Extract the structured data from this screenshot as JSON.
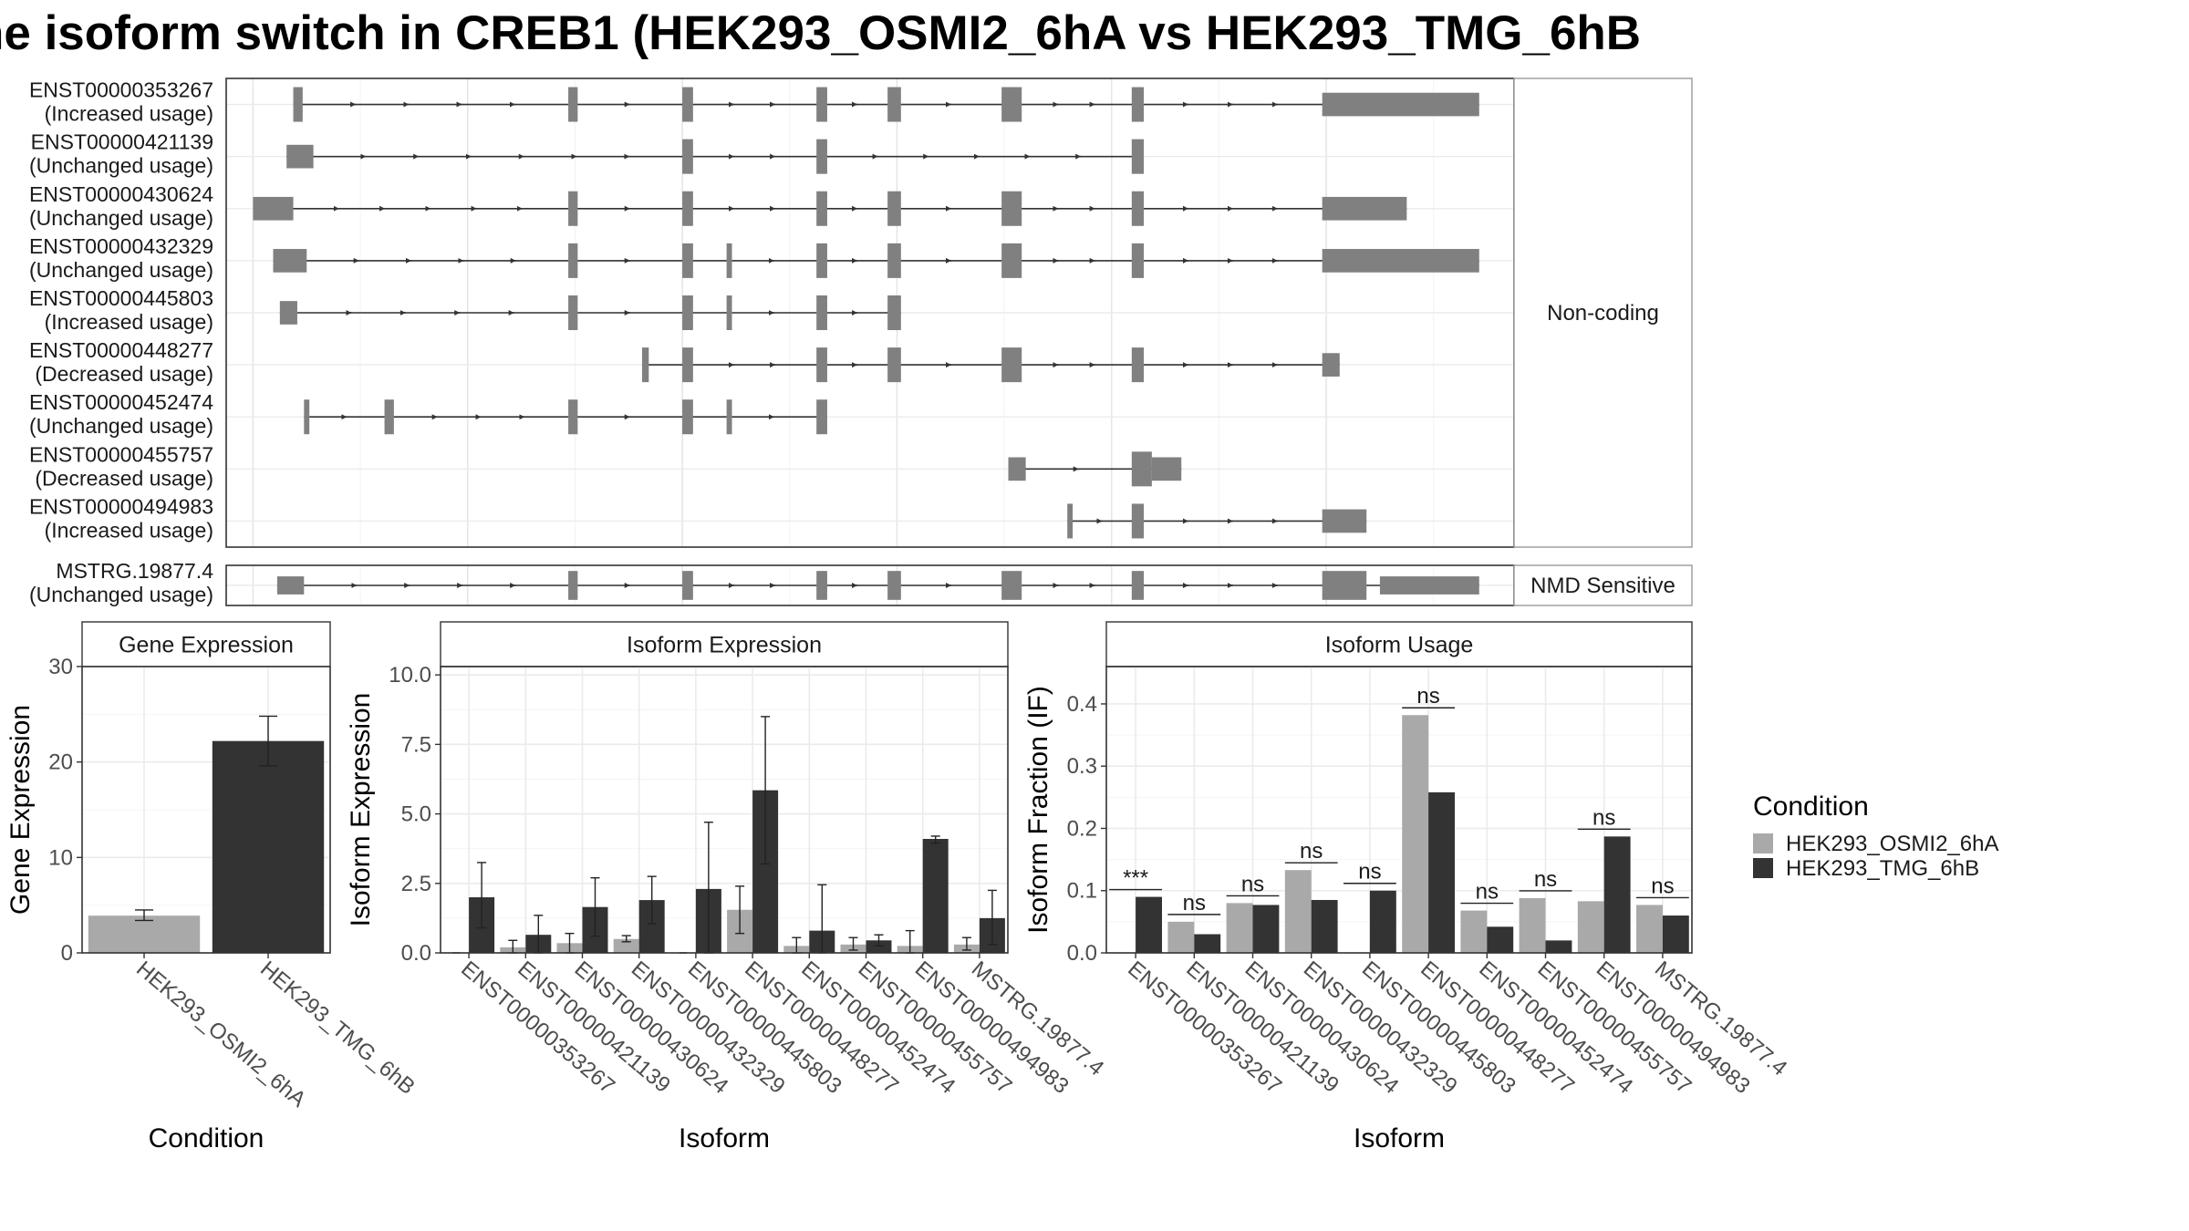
{
  "title": "he isoform switch in CREB1 (HEK293_OSMI2_6hA vs HEK293_TMG_6hB",
  "colors": {
    "cond_a": "#a9a9a9",
    "cond_b": "#333333",
    "exon": "#808080"
  },
  "chart_data": [
    {
      "type": "gene_structure",
      "panels": [
        {
          "strip": "Non-coding",
          "transcripts": [
            {
              "id": "ENST00000353267",
              "status": "(Increased usage)",
              "exons": [
                [
                  0.5,
                  0.57
                ],
                [
                  2.55,
                  2.62
                ],
                [
                  3.4,
                  3.48
                ],
                [
                  4.4,
                  4.48
                ],
                [
                  4.93,
                  5.03
                ],
                [
                  5.78,
                  5.93
                ],
                [
                  6.75,
                  6.84
                ],
                [
                  8.17,
                  9.34
                ]
              ]
            },
            {
              "id": "ENST00000421139",
              "status": "(Unchanged usage)",
              "exons": [
                [
                  0.45,
                  0.65
                ],
                [
                  3.4,
                  3.48
                ],
                [
                  4.4,
                  4.48
                ],
                [
                  6.75,
                  6.84
                ]
              ]
            },
            {
              "id": "ENST00000430624",
              "status": "(Unchanged usage)",
              "exons": [
                [
                  0.2,
                  0.5
                ],
                [
                  2.55,
                  2.62
                ],
                [
                  3.4,
                  3.48
                ],
                [
                  4.4,
                  4.48
                ],
                [
                  4.93,
                  5.03
                ],
                [
                  5.78,
                  5.93
                ],
                [
                  6.75,
                  6.84
                ],
                [
                  8.17,
                  8.8
                ]
              ]
            },
            {
              "id": "ENST00000432329",
              "status": "(Unchanged usage)",
              "exons": [
                [
                  0.35,
                  0.6
                ],
                [
                  2.55,
                  2.62
                ],
                [
                  3.4,
                  3.48
                ],
                [
                  3.73,
                  3.77
                ],
                [
                  4.4,
                  4.48
                ],
                [
                  4.93,
                  5.03
                ],
                [
                  5.78,
                  5.93
                ],
                [
                  6.75,
                  6.84
                ],
                [
                  8.17,
                  9.34
                ]
              ]
            },
            {
              "id": "ENST00000445803",
              "status": "(Increased usage)",
              "exons": [
                [
                  0.4,
                  0.53
                ],
                [
                  2.55,
                  2.62
                ],
                [
                  3.4,
                  3.48
                ],
                [
                  3.73,
                  3.77
                ],
                [
                  4.4,
                  4.48
                ],
                [
                  4.93,
                  5.03
                ]
              ]
            },
            {
              "id": "ENST00000448277",
              "status": "(Decreased usage)",
              "exons": [
                [
                  3.1,
                  3.15
                ],
                [
                  3.4,
                  3.48
                ],
                [
                  4.4,
                  4.48
                ],
                [
                  4.93,
                  5.03
                ],
                [
                  5.78,
                  5.93
                ],
                [
                  6.75,
                  6.84
                ],
                [
                  8.17,
                  8.3
                ]
              ]
            },
            {
              "id": "ENST00000452474",
              "status": "(Unchanged usage)",
              "exons": [
                [
                  0.58,
                  0.62
                ],
                [
                  1.18,
                  1.25
                ],
                [
                  2.55,
                  2.62
                ],
                [
                  3.4,
                  3.48
                ],
                [
                  3.73,
                  3.77
                ],
                [
                  4.4,
                  4.48
                ]
              ]
            },
            {
              "id": "ENST00000455757",
              "status": "(Decreased usage)",
              "exons": [
                [
                  5.83,
                  5.96
                ],
                [
                  6.75,
                  6.9
                ],
                [
                  6.9,
                  7.12
                ]
              ]
            },
            {
              "id": "ENST00000494983",
              "status": "(Increased usage)",
              "exons": [
                [
                  6.27,
                  6.31
                ],
                [
                  6.75,
                  6.84
                ],
                [
                  8.17,
                  8.5
                ]
              ]
            }
          ]
        },
        {
          "strip": "NMD Sensitive",
          "transcripts": [
            {
              "id": "MSTRG.19877.4",
              "status": "(Unchanged usage)",
              "exons": [
                [
                  0.38,
                  0.58
                ],
                [
                  2.55,
                  2.62
                ],
                [
                  3.4,
                  3.48
                ],
                [
                  4.4,
                  4.48
                ],
                [
                  4.93,
                  5.03
                ],
                [
                  5.78,
                  5.93
                ],
                [
                  6.75,
                  6.84
                ],
                [
                  8.17,
                  8.5
                ],
                [
                  8.6,
                  9.34
                ]
              ]
            }
          ]
        }
      ]
    },
    {
      "type": "bar",
      "strip": "Gene Expression",
      "xlabel": "Condition",
      "ylabel": "Gene Expression",
      "ylim": [
        0,
        30
      ],
      "yticks": [
        "0",
        "10",
        "20",
        "30"
      ],
      "categories": [
        "HEK293_OSMI2_6hA",
        "HEK293_TMG_6hB"
      ],
      "values": [
        3.9,
        22.2
      ],
      "error": [
        [
          3.4,
          4.5
        ],
        [
          19.6,
          24.8
        ]
      ]
    },
    {
      "type": "bar",
      "strip": "Isoform Expression",
      "xlabel": "Isoform",
      "ylabel": "Isoform Expression",
      "ylim": [
        0,
        10.3
      ],
      "yticks": [
        "0.0",
        "2.5",
        "5.0",
        "7.5",
        "10.0"
      ],
      "categories": [
        "ENST00000353267",
        "ENST00000421139",
        "ENST00000430624",
        "ENST00000432329",
        "ENST00000445803",
        "ENST00000448277",
        "ENST00000452474",
        "ENST00000455757",
        "ENST00000494983",
        "MSTRG.19877.4"
      ],
      "series": [
        {
          "name": "HEK293_OSMI2_6hA",
          "values": [
            0.0,
            0.2,
            0.35,
            0.5,
            0.0,
            1.55,
            0.25,
            0.3,
            0.25,
            0.3
          ],
          "error": [
            [
              0,
              0
            ],
            [
              0,
              0.45
            ],
            [
              0,
              0.7
            ],
            [
              0.4,
              0.62
            ],
            [
              0,
              0
            ],
            [
              0.7,
              2.4
            ],
            [
              0,
              0.55
            ],
            [
              0.1,
              0.55
            ],
            [
              0,
              0.8
            ],
            [
              0.1,
              0.55
            ]
          ]
        },
        {
          "name": "HEK293_TMG_6hB",
          "values": [
            2.0,
            0.65,
            1.65,
            1.9,
            2.3,
            5.85,
            0.8,
            0.45,
            4.1,
            1.25
          ],
          "error": [
            [
              0.9,
              3.25
            ],
            [
              0.0,
              1.35
            ],
            [
              0.6,
              2.7
            ],
            [
              1.05,
              2.75
            ],
            [
              0.0,
              4.7
            ],
            [
              3.2,
              8.5
            ],
            [
              0.0,
              2.45
            ],
            [
              0.25,
              0.65
            ],
            [
              3.95,
              4.2
            ],
            [
              0.3,
              2.25
            ]
          ]
        }
      ]
    },
    {
      "type": "bar",
      "strip": "Isoform Usage",
      "xlabel": "Isoform",
      "ylabel": "Isoform Fraction (IF)",
      "ylim": [
        0,
        0.46
      ],
      "yticks": [
        "0.0",
        "0.1",
        "0.2",
        "0.3",
        "0.4"
      ],
      "categories": [
        "ENST00000353267",
        "ENST00000421139",
        "ENST00000430624",
        "ENST00000432329",
        "ENST00000445803",
        "ENST00000448277",
        "ENST00000452474",
        "ENST00000455757",
        "ENST00000494983",
        "MSTRG.19877.4"
      ],
      "series": [
        {
          "name": "HEK293_OSMI2_6hA",
          "values": [
            0.0,
            0.05,
            0.08,
            0.133,
            0.0,
            0.382,
            0.068,
            0.088,
            0.083,
            0.077
          ]
        },
        {
          "name": "HEK293_TMG_6hB",
          "values": [
            0.09,
            0.03,
            0.077,
            0.085,
            0.1,
            0.258,
            0.042,
            0.02,
            0.187,
            0.06
          ]
        }
      ],
      "significance": [
        "***",
        "ns",
        "ns",
        "ns",
        "ns",
        "ns",
        "ns",
        "ns",
        "ns",
        "ns"
      ]
    }
  ],
  "legend": {
    "title": "Condition",
    "items": [
      "HEK293_OSMI2_6hA",
      "HEK293_TMG_6hB"
    ]
  }
}
